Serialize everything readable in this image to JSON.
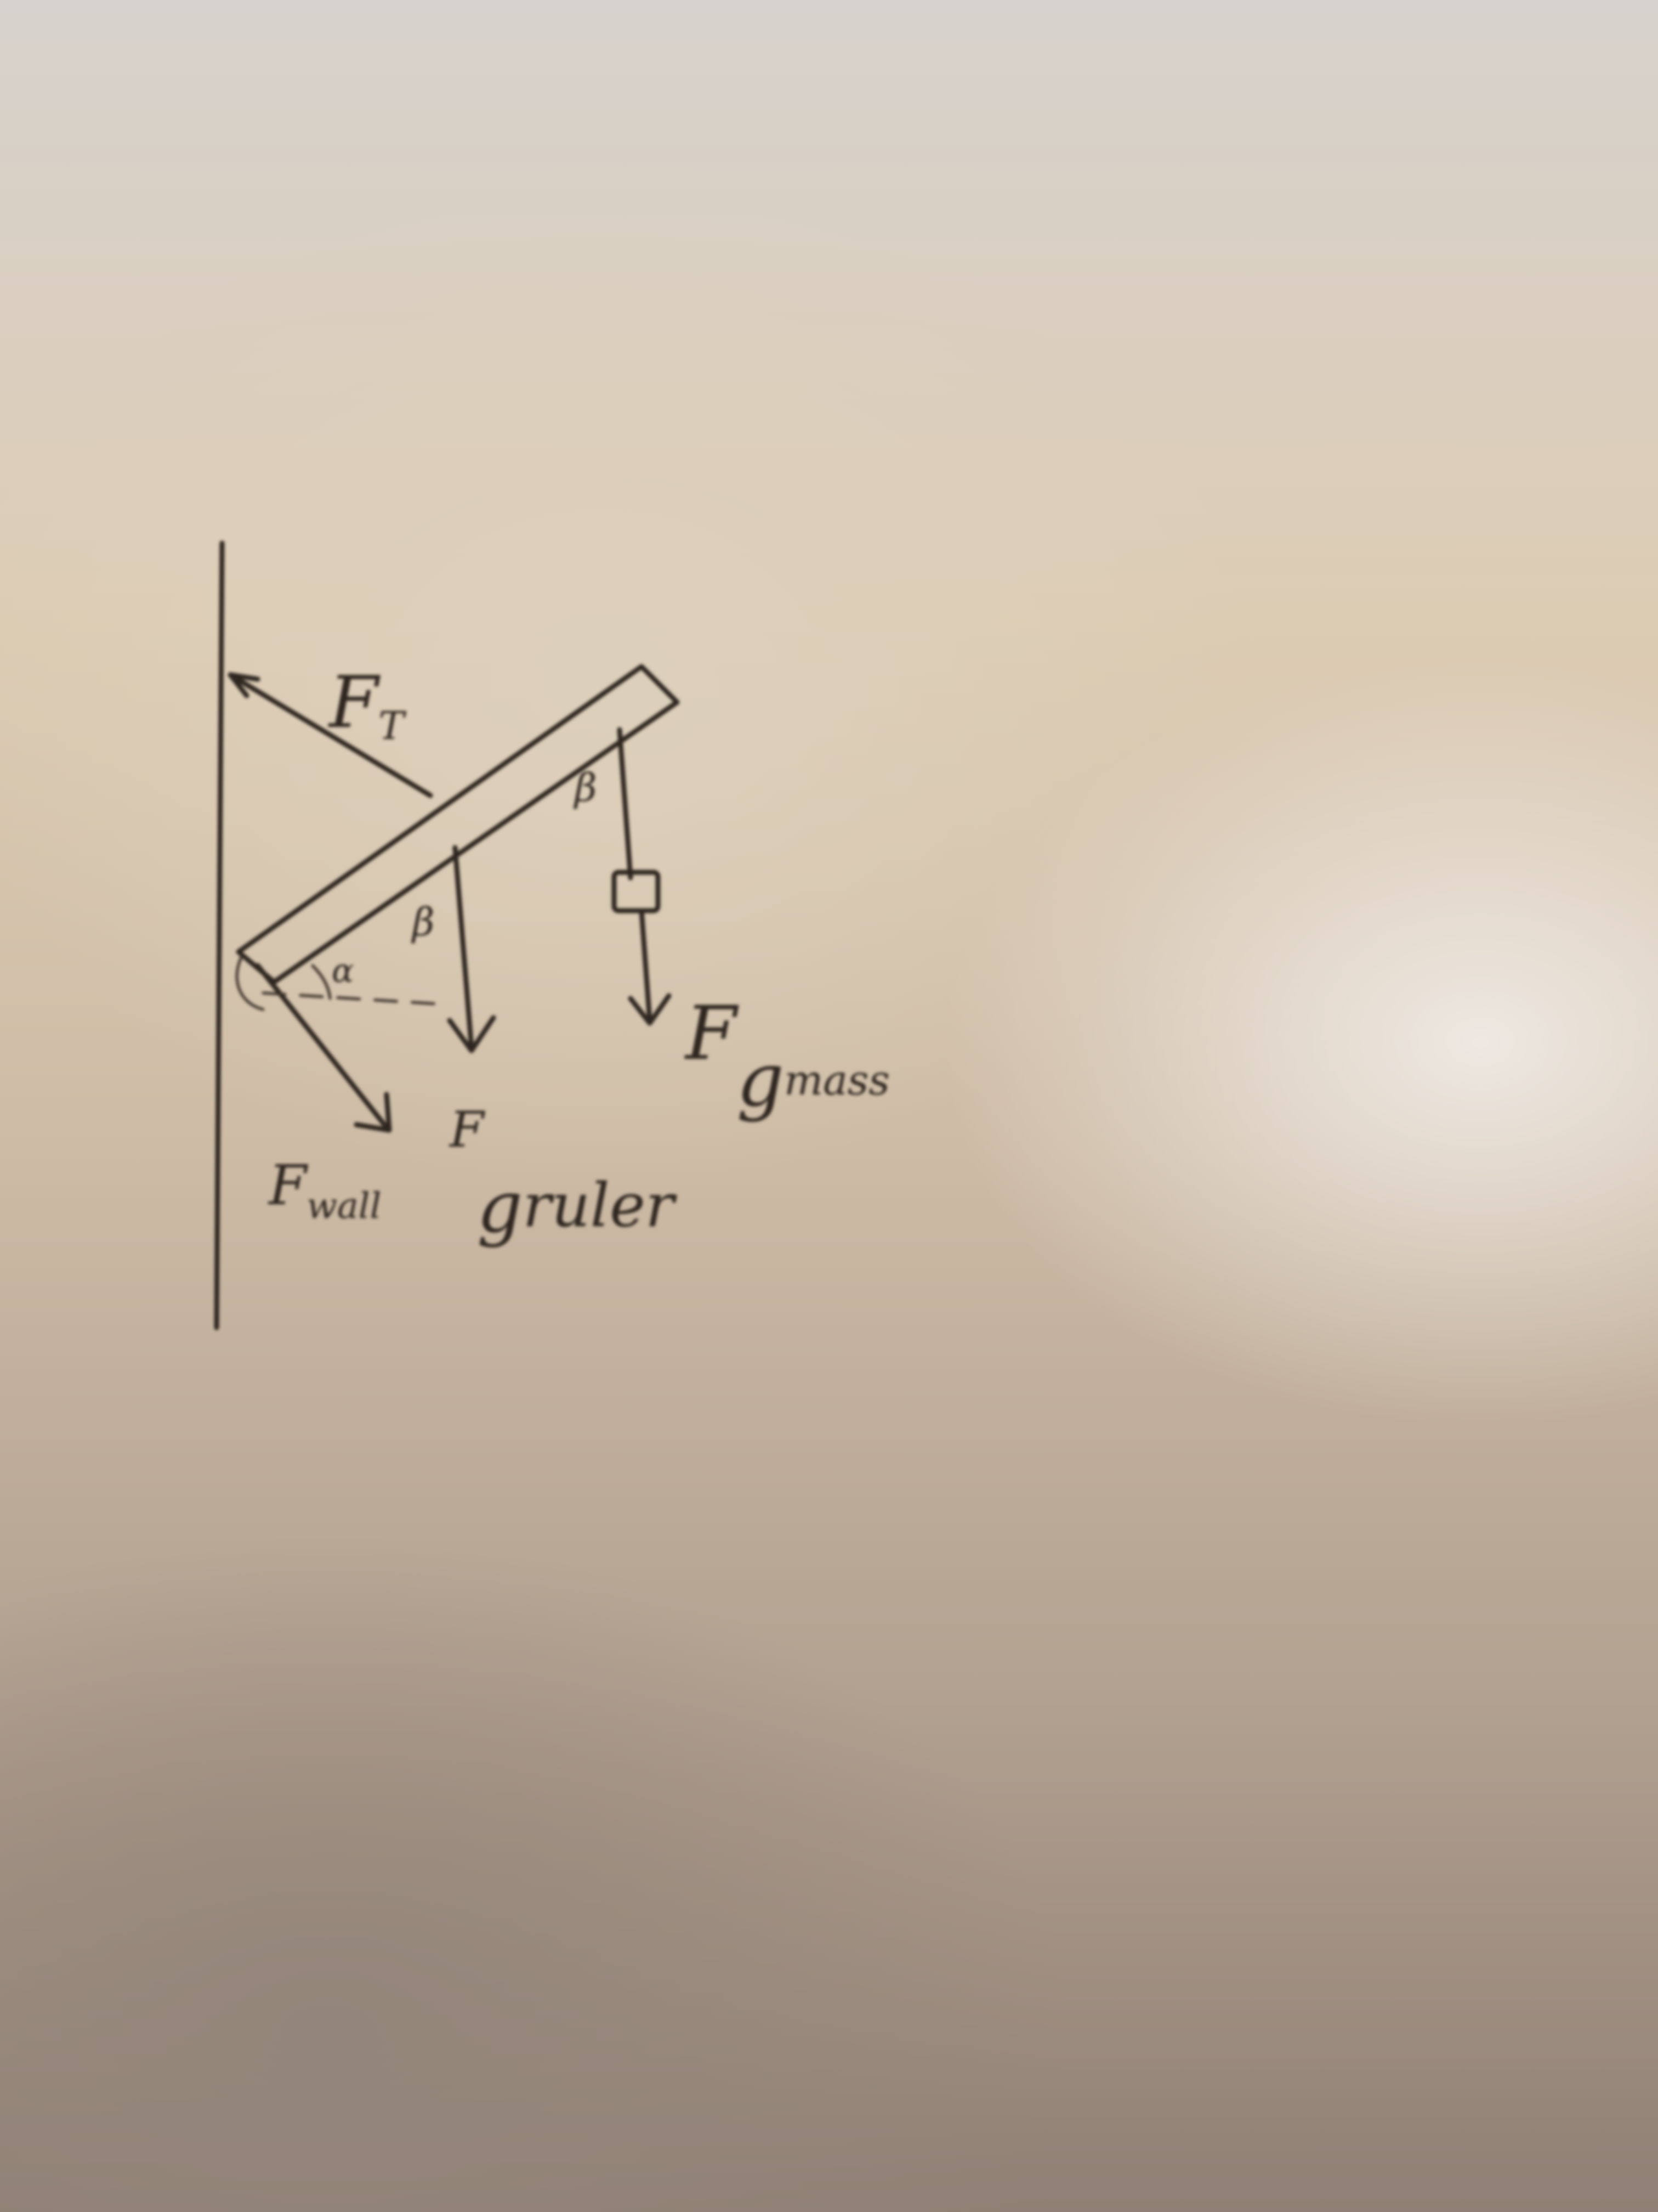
{
  "labels": {
    "tension": {
      "main": "F",
      "sub": "T"
    },
    "gravity_mass": {
      "main": "F",
      "sub1": "g",
      "sub2": "mass"
    },
    "gravity_ruler": {
      "main": "F",
      "sub1": "g",
      "sub2": "ruler"
    },
    "wall_force": {
      "main": "F",
      "sub": "wall"
    },
    "angle_beta_upper": "β",
    "angle_beta_lower": "β",
    "angle_alpha": "α"
  }
}
